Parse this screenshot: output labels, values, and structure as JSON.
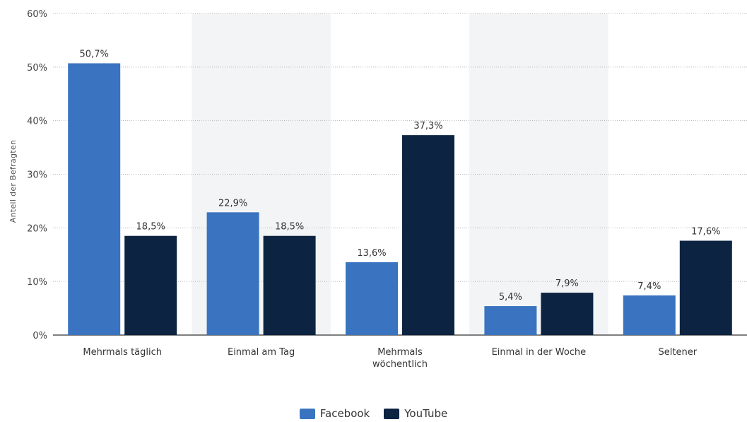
{
  "chart_data": {
    "type": "bar",
    "categories": [
      "Mehrmals täglich",
      "Einmal am Tag",
      "Mehrmals wöchentlich",
      "Einmal in der Woche",
      "Seltener"
    ],
    "category_lines": [
      [
        "Mehrmals täglich"
      ],
      [
        "Einmal am Tag"
      ],
      [
        "Mehrmals",
        "wöchentlich"
      ],
      [
        "Einmal in der Woche"
      ],
      [
        "Seltener"
      ]
    ],
    "series": [
      {
        "name": "Facebook",
        "color": "#3a74c0",
        "values": [
          50.7,
          22.9,
          13.6,
          5.4,
          7.4
        ],
        "labels": [
          "50,7%",
          "22,9%",
          "13,6%",
          "5,4%",
          "7,4%"
        ]
      },
      {
        "name": "YouTube",
        "color": "#0c2442",
        "values": [
          18.5,
          18.5,
          37.3,
          7.9,
          17.6
        ],
        "labels": [
          "18,5%",
          "18,5%",
          "37,3%",
          "7,9%",
          "17,6%"
        ]
      }
    ],
    "ylabel": "Anteil der Befragten",
    "ylim": [
      0,
      60
    ],
    "yticks": [
      0,
      10,
      20,
      30,
      40,
      50,
      60
    ],
    "ytick_labels": [
      "0%",
      "10%",
      "20%",
      "30%",
      "40%",
      "50%",
      "60%"
    ],
    "grid": true,
    "legend_position": "bottom-center",
    "band_color": "#f3f4f5"
  }
}
